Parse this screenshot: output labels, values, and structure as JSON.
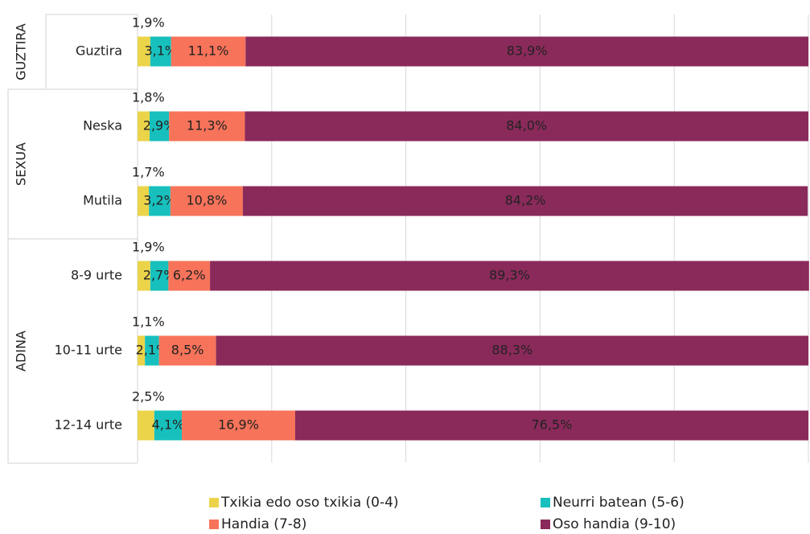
{
  "chart_data": {
    "type": "stacked-barh",
    "categories": [
      "Guztira",
      "Neska",
      "Mutila",
      "8-9 urte",
      "10-11 urte",
      "12-14 urte"
    ],
    "groups": [
      {
        "label": "GUZTIRA",
        "size": 1
      },
      {
        "label": "SEXUA",
        "size": 2
      },
      {
        "label": "ADINA",
        "size": 3
      }
    ],
    "series": [
      {
        "name": "Txikia edo oso txikia (0-4)",
        "color": "#ebd44a",
        "label_color": "#222222",
        "label_position": "above",
        "values": [
          1.9,
          1.8,
          1.7,
          1.9,
          1.1,
          2.5
        ],
        "value_labels": [
          "1,9%",
          "1,8%",
          "1,7%",
          "1,9%",
          "1,1%",
          "2,5%"
        ]
      },
      {
        "name": "Neurri batean (5-6)",
        "color": "#17c0bd",
        "label_color": "#222222",
        "label_position": "inside",
        "values": [
          3.1,
          2.9,
          3.2,
          2.7,
          2.1,
          4.1
        ],
        "value_labels": [
          "3,1%",
          "2,9%",
          "3,2%",
          "2,7%",
          "2,1%",
          "4,1%"
        ]
      },
      {
        "name": "Handia (7-8)",
        "color": "#f7735a",
        "label_color": "#ffffff",
        "label_position": "inside",
        "values": [
          11.1,
          11.3,
          10.8,
          6.2,
          8.5,
          16.9
        ],
        "value_labels": [
          "11,1%",
          "11,3%",
          "10,8%",
          "6,2%",
          "8,5%",
          "16,9%"
        ]
      },
      {
        "name": "Oso handia (9-10)",
        "color": "#8a2a5a",
        "label_color": "#ffffff",
        "label_position": "inside",
        "values": [
          83.9,
          84.0,
          84.2,
          89.3,
          88.3,
          76.5
        ],
        "value_labels": [
          "83,9%",
          "84,0%",
          "84,2%",
          "89,3%",
          "88,3%",
          "76,5%"
        ]
      }
    ],
    "xlim": [
      0,
      100
    ],
    "xticks": [
      0,
      20,
      40,
      60,
      80,
      100
    ],
    "grid": true
  }
}
